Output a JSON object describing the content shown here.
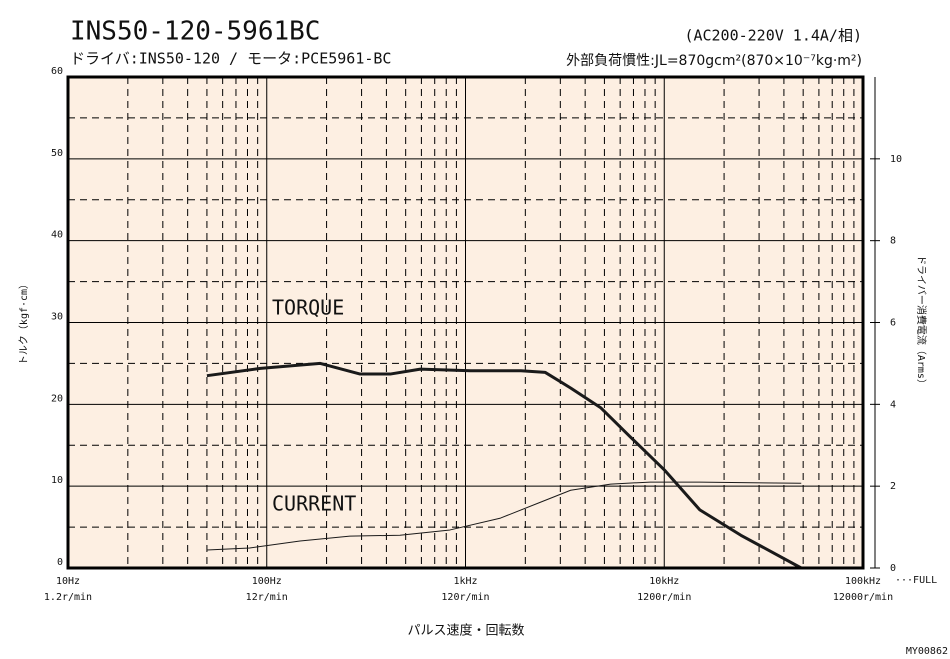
{
  "chart_data": {
    "type": "line",
    "title": "INS50-120-5961BC",
    "subtitle": "ドライバ:INS50-120 / モータ:PCE5961-BC",
    "spec": "(AC200-220V  1.4A/相)",
    "inertia": "外部負荷慣性:JL=870gcm²(870×10⁻⁷kg·m²)",
    "x_label": "パルス速度・回転数",
    "y_label": "トルク（kgf·cm）",
    "y2_label": "ドライバー消費電流（Arms）",
    "x_note": "···FULL",
    "code": "MY00862",
    "log_x": true,
    "grid": true,
    "xlim": [
      10,
      100000
    ],
    "xticks": [
      {
        "value": 10,
        "label": "10Hz"
      },
      {
        "value": 100,
        "label": "100Hz"
      },
      {
        "value": 1000,
        "label": "1kHz"
      },
      {
        "value": 10000,
        "label": "10kHz"
      },
      {
        "value": 100000,
        "label": "100kHz"
      }
    ],
    "xtick_sublabels": [
      "1.2r/min",
      "12r/min",
      "120r/min",
      "1200r/min",
      "12000r/min"
    ],
    "ylim": [
      0,
      60
    ],
    "yticks": [
      0,
      10,
      20,
      30,
      40,
      50,
      60
    ],
    "y2lim": [
      0,
      12
    ],
    "y2ticks": [
      0,
      2,
      4,
      6,
      8,
      10
    ],
    "series": [
      {
        "name": "TORQUE",
        "color": "#1a1a1a",
        "width": 3,
        "x": [
          50,
          93,
          186,
          295,
          418,
          593,
          1060,
          1900,
          2520,
          3380,
          4780,
          6760,
          10000,
          15100,
          24300,
          48900
        ],
        "values": [
          23.5,
          24.4,
          25.0,
          23.7,
          23.7,
          24.3,
          24.1,
          24.1,
          23.9,
          22.0,
          19.6,
          16.0,
          12.0,
          7.1,
          4.0,
          0
        ]
      },
      {
        "name": "CURRENT",
        "color": "#1a1a1a",
        "width": 1,
        "axis": "y2",
        "x": [
          50,
          82,
          147,
          262,
          468,
          836,
          1500,
          2390,
          3380,
          5370,
          8500,
          15100,
          48900
        ],
        "values": [
          0.44,
          0.49,
          0.66,
          0.78,
          0.8,
          0.93,
          1.22,
          1.61,
          1.9,
          2.05,
          2.1,
          2.1,
          2.07
        ]
      }
    ]
  }
}
